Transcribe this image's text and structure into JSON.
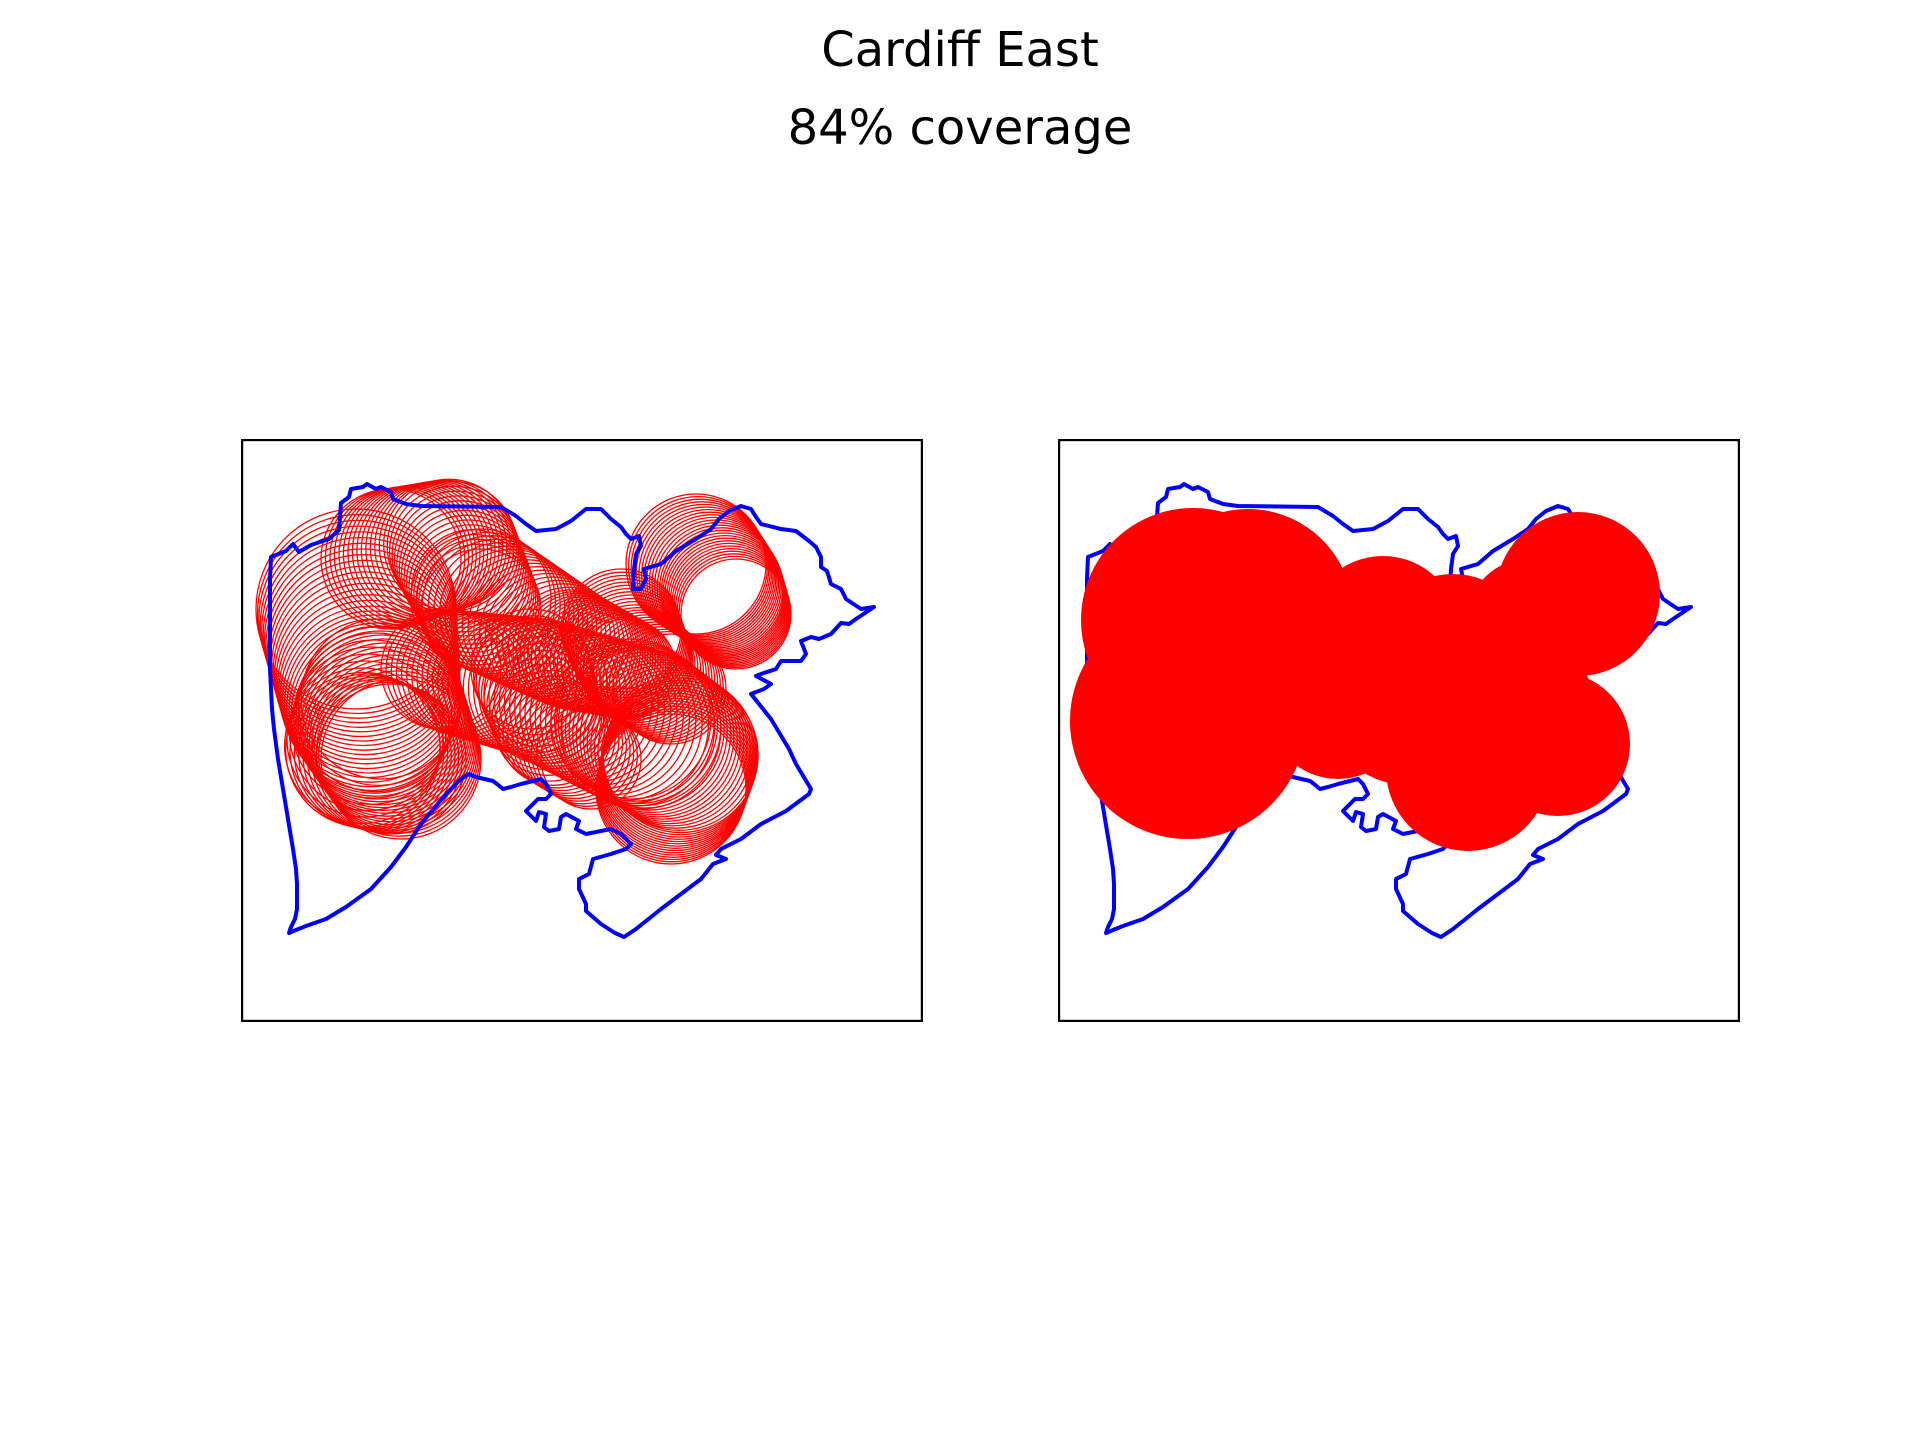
{
  "figure": {
    "title": "Cardiff East",
    "subtitle": "84% coverage"
  },
  "colors": {
    "boundary": "#0000ff",
    "coverage": "#ff0000",
    "frame": "#000000",
    "background": "#ffffff"
  },
  "panels": [
    {
      "id": "left",
      "style": "outlined-circles"
    },
    {
      "id": "right",
      "style": "filled-union"
    }
  ]
}
